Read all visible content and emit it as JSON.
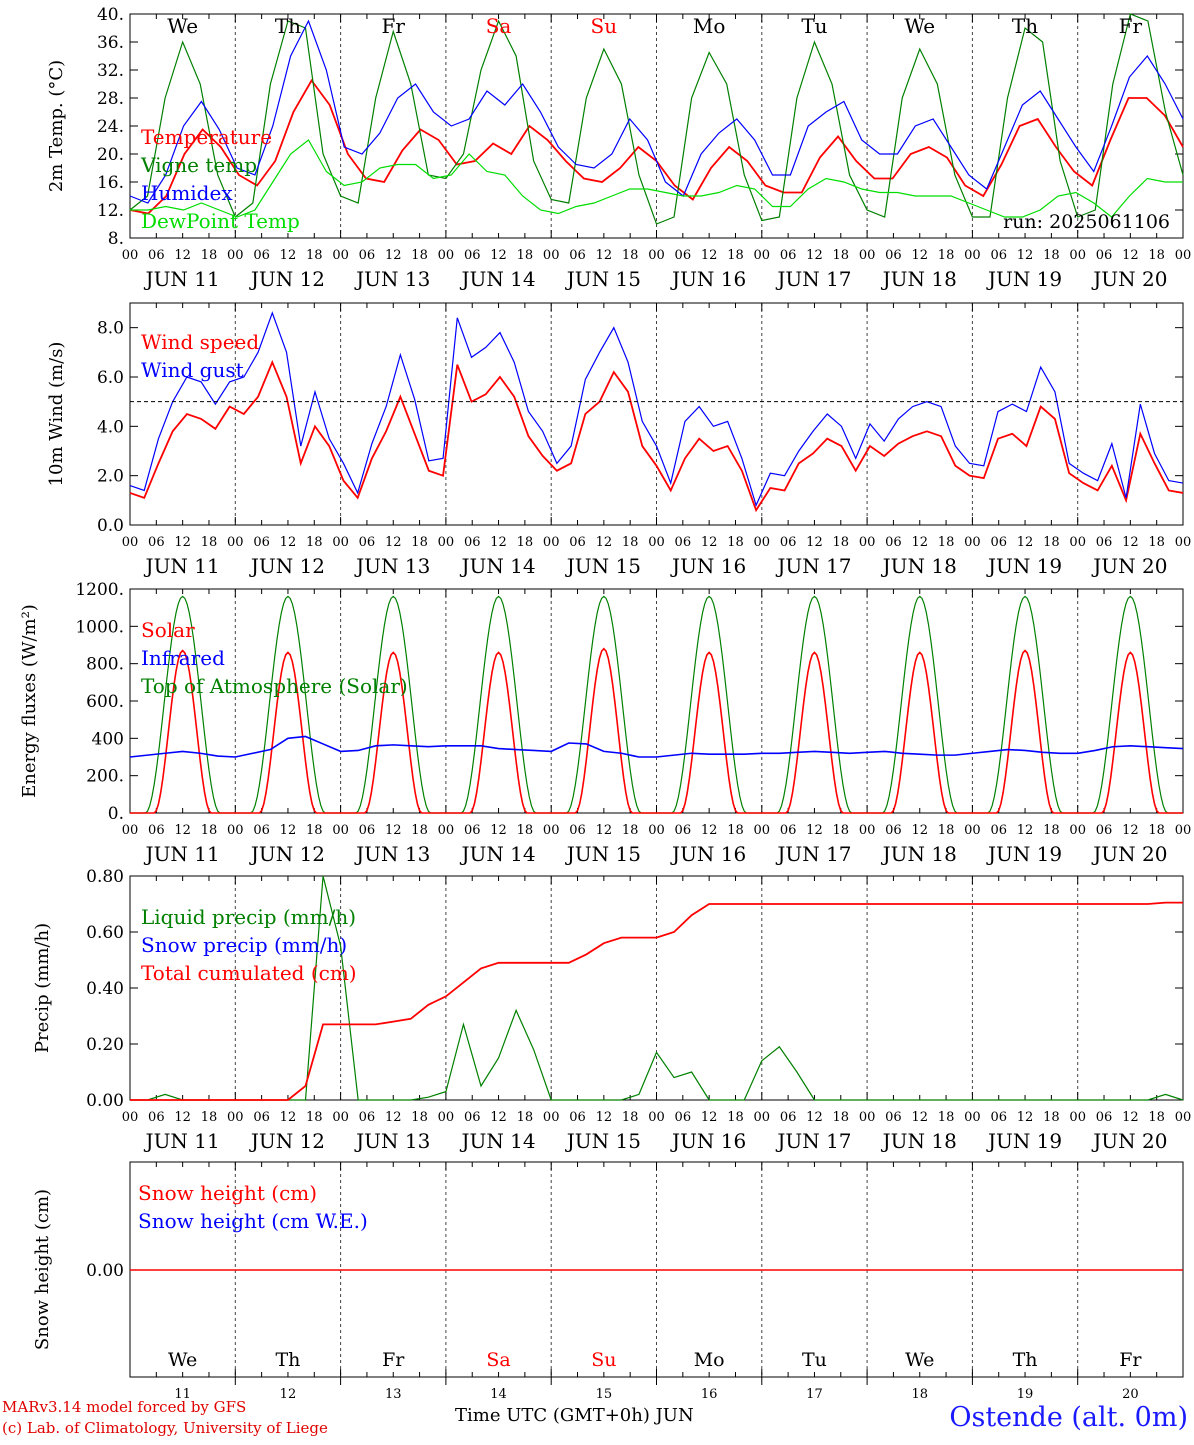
{
  "chart_data": [
    {
      "type": "line",
      "ylabel": "2m Temp. (°C)",
      "yticks": [
        "40.",
        "36.",
        "32.",
        "28.",
        "24.",
        "20.",
        "16.",
        "12.",
        "8."
      ],
      "ylim": [
        8,
        40
      ],
      "hourly_step": 6,
      "annotation": "run: 2025061106",
      "legend": [
        {
          "name": "Temperature",
          "color": "#ff0000"
        },
        {
          "name": "Vigne temp",
          "color": "#008000"
        },
        {
          "name": "Humidex",
          "color": "#0000ff"
        },
        {
          "name": "DewPoint Temp",
          "color": "#00dd00"
        }
      ],
      "series": [
        {
          "name": "Temperature",
          "color": "#ff0000",
          "values": [
            12,
            11.5,
            14,
            20,
            23.5,
            21,
            17,
            15.5,
            19,
            26,
            30.5,
            27,
            20,
            16.5,
            16,
            20.5,
            23.5,
            22,
            18.5,
            19,
            21.5,
            20,
            24,
            22,
            19,
            16.5,
            16,
            18,
            21,
            19,
            15.5,
            13.5,
            18,
            21,
            19,
            15.5,
            14.5,
            14.5,
            19.5,
            22.5,
            19,
            16.5,
            16.5,
            20,
            21,
            19.5,
            15.5,
            14,
            18.5,
            24,
            25,
            21,
            17.5,
            15.5,
            22,
            28,
            28,
            25.5,
            21
          ]
        },
        {
          "name": "Vigne temp",
          "color": "#008000",
          "values": [
            12,
            14,
            28,
            36,
            30,
            17,
            11,
            13,
            30,
            39,
            38,
            20,
            14,
            13,
            28,
            37.5,
            30,
            17,
            16.5,
            20,
            32,
            39,
            34,
            19,
            13.5,
            13,
            28,
            35,
            30,
            17,
            10,
            11,
            28,
            34.5,
            30,
            17,
            10.5,
            11,
            28,
            36,
            30,
            17,
            12,
            11,
            28,
            35,
            30,
            17,
            11,
            11,
            28,
            38,
            36,
            19,
            11,
            12,
            30,
            40,
            39,
            26,
            17
          ]
        },
        {
          "name": "Humidex",
          "color": "#0000ff",
          "values": [
            14,
            13,
            17,
            24,
            27.5,
            23.5,
            18,
            17,
            24,
            34,
            39,
            32,
            21,
            20,
            23,
            28,
            30,
            26,
            24,
            25,
            29,
            27,
            30,
            26,
            21,
            18.5,
            18,
            20,
            25,
            22,
            16,
            14,
            20,
            23,
            25,
            22,
            17,
            17,
            24,
            26,
            27.5,
            22,
            20,
            20,
            24,
            25,
            21,
            17,
            15,
            21,
            27,
            29,
            25,
            21,
            17.5,
            24,
            31,
            34,
            30,
            25
          ]
        },
        {
          "name": "DewPoint Temp",
          "color": "#00dd00",
          "values": [
            12,
            12,
            12.5,
            12,
            13,
            12,
            11,
            12,
            16,
            20,
            22,
            17.5,
            15.5,
            16,
            18,
            18.5,
            18.5,
            16.5,
            17,
            20,
            17.5,
            17,
            14,
            12,
            11.5,
            12.5,
            13,
            14,
            15,
            15,
            14.5,
            14,
            14,
            14.5,
            15.5,
            15,
            12.5,
            12.5,
            15,
            16.5,
            16,
            15,
            14.5,
            14.5,
            14,
            14,
            14,
            13,
            12,
            11,
            11,
            12,
            14,
            14.5,
            13,
            11,
            14,
            16.5,
            16,
            16
          ]
        }
      ]
    },
    {
      "type": "line",
      "ylabel": "10m Wind (m/s)",
      "yticks": [
        "8.0",
        "6.0",
        "4.0",
        "2.0",
        "0.0"
      ],
      "ylim": [
        0,
        9
      ],
      "hourly_step": 6,
      "reference_line": 5.0,
      "legend": [
        {
          "name": "Wind speed",
          "color": "#ff0000"
        },
        {
          "name": "Wind gust",
          "color": "#0000ff"
        }
      ],
      "series": [
        {
          "name": "Wind speed",
          "color": "#ff0000",
          "values": [
            1.3,
            1.1,
            2.5,
            3.8,
            4.5,
            4.3,
            3.9,
            4.8,
            4.5,
            5.2,
            6.6,
            5.2,
            2.5,
            4.0,
            3.2,
            1.8,
            1.1,
            2.7,
            3.8,
            5.2,
            3.7,
            2.2,
            2.0,
            6.5,
            5.0,
            5.3,
            6.0,
            5.2,
            3.6,
            2.8,
            2.2,
            2.5,
            4.5,
            5.0,
            6.2,
            5.4,
            3.2,
            2.4,
            1.4,
            2.7,
            3.5,
            3.0,
            3.2,
            2.2,
            0.6,
            1.5,
            1.4,
            2.5,
            2.9,
            3.5,
            3.2,
            2.2,
            3.2,
            2.8,
            3.3,
            3.6,
            3.8,
            3.6,
            2.4,
            2.0,
            1.9,
            3.5,
            3.7,
            3.2,
            4.8,
            4.3,
            2.1,
            1.7,
            1.4,
            2.4,
            1.0,
            3.7,
            2.5,
            1.4,
            1.3
          ]
        },
        {
          "name": "Wind gust",
          "color": "#0000ff",
          "values": [
            1.6,
            1.4,
            3.5,
            5.0,
            6.0,
            5.8,
            4.9,
            5.8,
            6.0,
            7.0,
            8.6,
            7.0,
            3.2,
            5.4,
            3.5,
            2.5,
            1.3,
            3.3,
            4.8,
            6.9,
            5.1,
            2.6,
            2.7,
            8.4,
            6.8,
            7.2,
            7.8,
            6.6,
            4.6,
            3.8,
            2.5,
            3.2,
            5.9,
            7.0,
            8.0,
            6.6,
            4.2,
            3.2,
            1.7,
            4.2,
            4.8,
            4.0,
            4.2,
            2.7,
            0.8,
            2.1,
            2.0,
            3.0,
            3.8,
            4.5,
            4.0,
            2.7,
            4.1,
            3.4,
            4.3,
            4.8,
            5.0,
            4.8,
            3.2,
            2.5,
            2.4,
            4.6,
            4.9,
            4.6,
            6.4,
            5.4,
            2.5,
            2.1,
            1.8,
            3.3,
            1.1,
            4.9,
            2.9,
            1.8,
            1.7
          ]
        }
      ]
    },
    {
      "type": "line",
      "ylabel": "Energy fluxes (W/m²)",
      "yticks": [
        "1200.",
        "1000.",
        "800.",
        "600.",
        "400",
        "200.",
        "0."
      ],
      "ylim": [
        0,
        1200
      ],
      "hourly_step": 6,
      "legend": [
        {
          "name": "Solar",
          "color": "#ff0000"
        },
        {
          "name": "Infrared",
          "color": "#0000ff"
        },
        {
          "name": "Top of Atmosphere (Solar)",
          "color": "#008000"
        }
      ],
      "series": [
        {
          "name": "Solar",
          "color": "#ff0000",
          "daily_peaks": [
            870,
            860,
            860,
            860,
            880,
            860,
            860,
            860,
            870,
            860
          ]
        },
        {
          "name": "Infrared",
          "color": "#0000ff",
          "values": [
            300,
            310,
            320,
            330,
            320,
            305,
            300,
            320,
            340,
            400,
            410,
            370,
            330,
            335,
            360,
            365,
            360,
            355,
            360,
            360,
            360,
            345,
            340,
            335,
            330,
            375,
            370,
            330,
            320,
            300,
            300,
            310,
            320,
            315,
            315,
            315,
            320,
            320,
            325,
            330,
            325,
            320,
            325,
            330,
            320,
            315,
            310,
            310,
            320,
            330,
            340,
            335,
            325,
            320,
            320,
            335,
            355,
            360,
            355,
            350,
            345
          ]
        },
        {
          "name": "Top of Atmosphere (Solar)",
          "color": "#008000",
          "daily_peak": 1160
        }
      ]
    },
    {
      "type": "line",
      "ylabel": "Precip (mm/h)",
      "yticks": [
        "0.80",
        "0.60",
        "0.40",
        "0.20",
        "0.00"
      ],
      "ylim": [
        0,
        0.8
      ],
      "hourly_step": 6,
      "legend": [
        {
          "name": "Liquid precip (mm/h)",
          "color": "#008000"
        },
        {
          "name": "Snow precip (mm/h)",
          "color": "#0000ff"
        },
        {
          "name": "Total cumulated (cm)",
          "color": "#ff0000"
        }
      ],
      "series": [
        {
          "name": "Liquid precip (mm/h)",
          "color": "#008000",
          "values": [
            0,
            0,
            0.02,
            0,
            0,
            0,
            0,
            0,
            0,
            0,
            0,
            0.8,
            0.55,
            0,
            0,
            0,
            0,
            0.01,
            0.03,
            0.27,
            0.05,
            0.15,
            0.32,
            0.18,
            0,
            0,
            0,
            0,
            0,
            0.02,
            0.17,
            0.08,
            0.1,
            0,
            0,
            0,
            0.14,
            0.19,
            0.1,
            0,
            0,
            0,
            0,
            0,
            0,
            0,
            0,
            0,
            0,
            0,
            0,
            0,
            0,
            0,
            0,
            0,
            0,
            0,
            0,
            0.02,
            0
          ]
        },
        {
          "name": "Total cumulated (cm)",
          "color": "#ff0000",
          "values": [
            0,
            0,
            0,
            0,
            0,
            0,
            0,
            0,
            0,
            0,
            0.05,
            0.27,
            0.27,
            0.27,
            0.27,
            0.28,
            0.29,
            0.34,
            0.37,
            0.42,
            0.47,
            0.49,
            0.49,
            0.49,
            0.49,
            0.49,
            0.52,
            0.56,
            0.58,
            0.58,
            0.58,
            0.6,
            0.66,
            0.7,
            0.7,
            0.7,
            0.7,
            0.7,
            0.7,
            0.7,
            0.7,
            0.7,
            0.7,
            0.7,
            0.7,
            0.7,
            0.7,
            0.7,
            0.7,
            0.7,
            0.7,
            0.7,
            0.7,
            0.7,
            0.7,
            0.7,
            0.7,
            0.7,
            0.7,
            0.705,
            0.705
          ]
        }
      ]
    },
    {
      "type": "line",
      "ylabel": "Snow height (cm)",
      "yticks": [
        "0.00"
      ],
      "hourly_step": 6,
      "legend": [
        {
          "name": "Snow height (cm)",
          "color": "#ff0000"
        },
        {
          "name": "Snow height (cm W.E.)",
          "color": "#0000ff"
        }
      ],
      "series": [
        {
          "name": "Snow height (cm)",
          "color": "#ff0000",
          "values": [
            0,
            0
          ]
        }
      ]
    }
  ],
  "axis": {
    "hour_ticks": [
      "00",
      "06",
      "12",
      "18"
    ],
    "date_labels": [
      "JUN 11",
      "JUN 12",
      "JUN 13",
      "JUN 14",
      "JUN 15",
      "JUN 16",
      "JUN 17",
      "JUN 18",
      "JUN 19",
      "JUN 20"
    ],
    "weekdays": [
      {
        "label": "We",
        "weekend": false
      },
      {
        "label": "Th",
        "weekend": false
      },
      {
        "label": "Fr",
        "weekend": false
      },
      {
        "label": "Sa",
        "weekend": true
      },
      {
        "label": "Su",
        "weekend": true
      },
      {
        "label": "Mo",
        "weekend": false
      },
      {
        "label": "Tu",
        "weekend": false
      },
      {
        "label": "We",
        "weekend": false
      },
      {
        "label": "Th",
        "weekend": false
      },
      {
        "label": "Fr",
        "weekend": false
      }
    ],
    "day_numbers": [
      "11",
      "12",
      "13",
      "14",
      "15",
      "16",
      "17",
      "18",
      "19",
      "20"
    ]
  },
  "footer": {
    "model_line": "MARv3.14 model forced by GFS",
    "copyright_line": "(c) Lab. of Climatology, University of Liege",
    "axis_title": "Time UTC (GMT+0h) JUN",
    "station": "Ostende (alt. 0m)"
  },
  "colors": {
    "weekday": "#000000",
    "weekend": "#ff0000",
    "grid": "#444444"
  }
}
